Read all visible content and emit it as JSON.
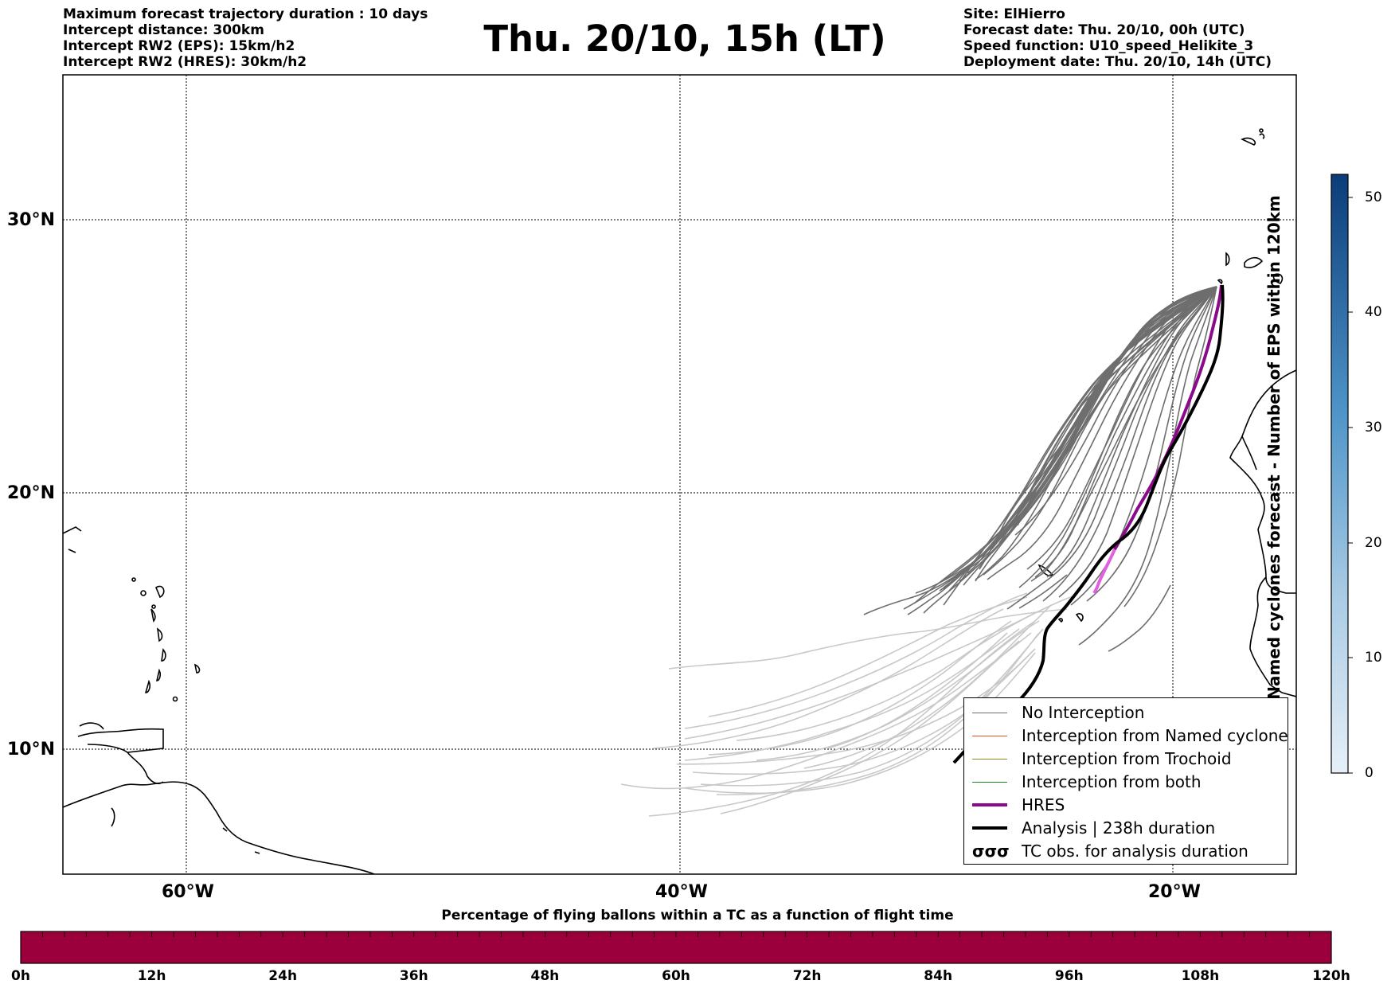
{
  "header": {
    "left": [
      "Maximum forecast trajectory duration : 10 days",
      "Intercept distance: 300km",
      "Intercept RW2 (EPS):  15km/h2",
      "Intercept RW2 (HRES): 30km/h2"
    ],
    "title": "Thu. 20/10, 15h (LT)",
    "right": [
      "Site: ElHierro",
      "Forecast date: Thu. 20/10, 00h (UTC)",
      "Speed function: U10_speed_Helikite_3",
      "Deployment date: Thu. 20/10, 14h (UTC)"
    ]
  },
  "map": {
    "lat_labels": [
      "30°N",
      "20°N",
      "10°N"
    ],
    "lon_labels": [
      "60°W",
      "40°W",
      "20°W"
    ],
    "extent": {
      "lon_min": -65,
      "lon_max": -15,
      "lat_min": 5.5,
      "lat_max": 35.5
    },
    "colors": {
      "no_interception": "#6e6e6e",
      "light_tracks": "#c8c8c8",
      "hres": "#8b0a8b",
      "hres_light": "#e060e0",
      "analysis": "#000000",
      "coast": "#000000"
    }
  },
  "legend": {
    "items": [
      {
        "label": "No Interception",
        "color": "#6e6e6e",
        "width": 1.5
      },
      {
        "label": "Interception from Named cyclone",
        "color": "#e8541e",
        "width": 1.5
      },
      {
        "label": "Interception from Trochoid",
        "color": "#8a8a1e",
        "width": 1.5
      },
      {
        "label": "Interception from both",
        "color": "#1e8a1e",
        "width": 1.5
      },
      {
        "label": "HRES",
        "color": "#8b0a8b",
        "width": 4
      },
      {
        "label": "Analysis | 238h duration",
        "color": "#000000",
        "width": 4
      },
      {
        "label": "TC obs. for analysis duration",
        "symbol": "σσσ"
      }
    ]
  },
  "colorbar_right": {
    "label": "Named cyclones forecast - Number of EPS within 120km",
    "ticks": [
      "0",
      "10",
      "20",
      "30",
      "40",
      "50"
    ],
    "max": 52,
    "color_low": "#e6eff8",
    "color_high": "#0a3c7a"
  },
  "bottom_bar": {
    "title": "Percentage of flying ballons within a TC as a function of flight time",
    "ticks": [
      "0h",
      "12h",
      "24h",
      "36h",
      "48h",
      "60h",
      "72h",
      "84h",
      "96h",
      "108h",
      "120h"
    ],
    "color": "#9b003c"
  }
}
